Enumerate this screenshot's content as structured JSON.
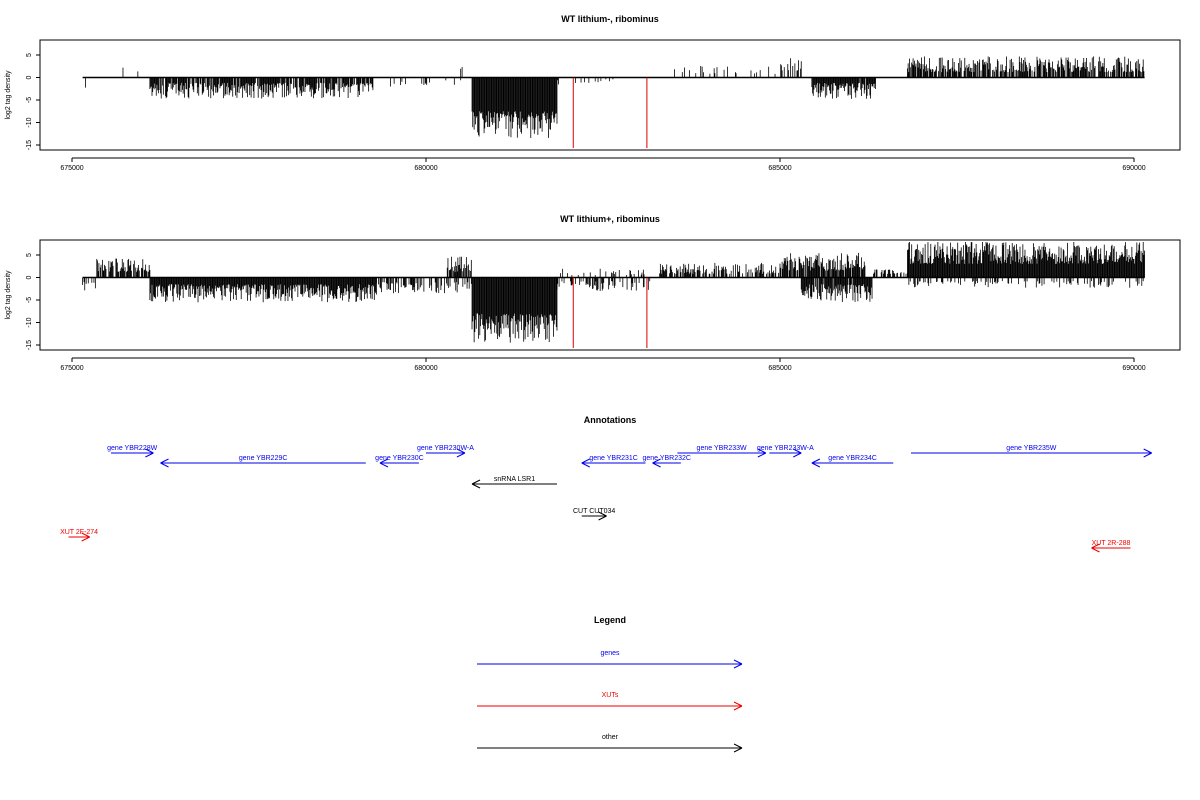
{
  "chart_data": [
    {
      "type": "bar",
      "title": "WT lithium-, ribominus",
      "xlabel": "",
      "ylabel": "log2 tag density",
      "xlim": [
        675000,
        690000
      ],
      "ylim": [
        -15,
        10
      ],
      "x_ticks": [
        {
          "value": 675000,
          "label": "675000"
        },
        {
          "value": 680000,
          "label": "680000"
        },
        {
          "value": 685000,
          "label": "685000"
        },
        {
          "value": 690000,
          "label": "690000"
        }
      ],
      "y_ticks": [
        {
          "value": 5,
          "label": "5"
        },
        {
          "value": 0,
          "label": "0"
        },
        {
          "value": -5,
          "label": "-5"
        },
        {
          "value": -10,
          "label": "-10"
        },
        {
          "value": -15,
          "label": "-15"
        }
      ],
      "grid": false,
      "x_range": [
        675150,
        690150
      ],
      "segments": [
        {
          "start": 675150,
          "end": 675450,
          "sign": -1,
          "base": 0.8,
          "amp": 1.8,
          "density": 0.05
        },
        {
          "start": 675450,
          "end": 675950,
          "sign": 1,
          "base": 1.0,
          "amp": 2.0,
          "density": 0.08
        },
        {
          "start": 676100,
          "end": 679250,
          "sign": -1,
          "base": 1.2,
          "amp": 3.5,
          "density": 0.85
        },
        {
          "start": 679500,
          "end": 680550,
          "sign": -1,
          "base": 0.6,
          "amp": 1.5,
          "density": 0.15
        },
        {
          "start": 680300,
          "end": 680600,
          "sign": 1,
          "base": 1.0,
          "amp": 2.0,
          "density": 0.12
        },
        {
          "start": 680650,
          "end": 681850,
          "sign": -1,
          "base": 7.5,
          "amp": 6.0,
          "density": 1.0
        },
        {
          "start": 681850,
          "end": 683200,
          "sign": -1,
          "base": 0.4,
          "amp": 1.2,
          "density": 0.08
        },
        {
          "start": 683500,
          "end": 685000,
          "sign": 1,
          "base": 0.8,
          "amp": 1.8,
          "density": 0.15
        },
        {
          "start": 685000,
          "end": 685300,
          "sign": 1,
          "base": 1.5,
          "amp": 3.0,
          "density": 0.4
        },
        {
          "start": 685450,
          "end": 686350,
          "sign": -1,
          "base": 1.2,
          "amp": 3.8,
          "density": 0.9
        },
        {
          "start": 686500,
          "end": 686800,
          "sign": 1,
          "base": 0.5,
          "amp": 1.0,
          "density": 0.05
        },
        {
          "start": 686800,
          "end": 690150,
          "sign": 1,
          "base": 1.2,
          "amp": 3.5,
          "density": 0.75
        }
      ],
      "red_lines": [
        {
          "x": 682080,
          "y": -16
        },
        {
          "x": 683120,
          "y": -16
        }
      ],
      "seed": 7
    },
    {
      "type": "bar",
      "title": "WT lithium+, ribominus",
      "xlabel": "",
      "ylabel": "log2 tag density",
      "xlim": [
        675000,
        690000
      ],
      "ylim": [
        -15,
        10
      ],
      "x_ticks": [
        {
          "value": 675000,
          "label": "675000"
        },
        {
          "value": 680000,
          "label": "680000"
        },
        {
          "value": 685000,
          "label": "685000"
        },
        {
          "value": 690000,
          "label": "690000"
        }
      ],
      "y_ticks": [
        {
          "value": 5,
          "label": "5"
        },
        {
          "value": 0,
          "label": "0"
        },
        {
          "value": -5,
          "label": "-5"
        },
        {
          "value": -10,
          "label": "-10"
        },
        {
          "value": -15,
          "label": "-15"
        }
      ],
      "grid": false,
      "x_range": [
        675150,
        690150
      ],
      "segments": [
        {
          "start": 675150,
          "end": 675350,
          "sign": -1,
          "base": 1.0,
          "amp": 2.0,
          "density": 0.5
        },
        {
          "start": 675350,
          "end": 676100,
          "sign": 1,
          "base": 1.2,
          "amp": 3.0,
          "density": 0.8
        },
        {
          "start": 676100,
          "end": 679300,
          "sign": -1,
          "base": 1.5,
          "amp": 4.0,
          "density": 1.0
        },
        {
          "start": 679300,
          "end": 680300,
          "sign": -1,
          "base": 1.0,
          "amp": 2.5,
          "density": 0.6
        },
        {
          "start": 680300,
          "end": 680650,
          "sign": 1,
          "base": 1.2,
          "amp": 3.5,
          "density": 0.6
        },
        {
          "start": 680300,
          "end": 680650,
          "sign": -1,
          "base": 1.0,
          "amp": 2.5,
          "density": 0.4
        },
        {
          "start": 680650,
          "end": 681850,
          "sign": -1,
          "base": 8.0,
          "amp": 6.5,
          "density": 1.0
        },
        {
          "start": 681850,
          "end": 683200,
          "sign": -1,
          "base": 0.8,
          "amp": 2.5,
          "density": 0.5
        },
        {
          "start": 681850,
          "end": 683200,
          "sign": 1,
          "base": 0.5,
          "amp": 1.5,
          "density": 0.2
        },
        {
          "start": 683300,
          "end": 685000,
          "sign": 1,
          "base": 0.8,
          "amp": 2.5,
          "density": 0.6
        },
        {
          "start": 685000,
          "end": 686200,
          "sign": 1,
          "base": 1.5,
          "amp": 4.0,
          "density": 0.9
        },
        {
          "start": 685300,
          "end": 686300,
          "sign": -1,
          "base": 1.5,
          "amp": 4.0,
          "density": 0.9
        },
        {
          "start": 686300,
          "end": 686800,
          "sign": 1,
          "base": 0.8,
          "amp": 1.5,
          "density": 0.5
        },
        {
          "start": 686800,
          "end": 690150,
          "sign": 1,
          "base": 3.0,
          "amp": 5.0,
          "density": 1.0
        },
        {
          "start": 686800,
          "end": 690150,
          "sign": -1,
          "base": 0.8,
          "amp": 1.5,
          "density": 0.3
        }
      ],
      "red_lines": [
        {
          "x": 682080,
          "y": -16
        },
        {
          "x": 683120,
          "y": -16
        }
      ],
      "seed": 13
    }
  ],
  "annotations": {
    "title": "Annotations",
    "colors": {
      "genes": "#0000ee",
      "XUTs": "#ee0000",
      "other": "#000000"
    },
    "items": [
      {
        "label": "gene YBR228W",
        "start": 675550,
        "end": 676150,
        "dir": "right",
        "cat": "genes",
        "row": 0
      },
      {
        "label": "gene YBR229C",
        "start": 676250,
        "end": 679150,
        "dir": "left",
        "cat": "genes",
        "row": 1
      },
      {
        "label": "gene YBR230C",
        "start": 679350,
        "end": 679900,
        "dir": "left",
        "cat": "genes",
        "row": 1
      },
      {
        "label": "gene YBR230W-A",
        "start": 680000,
        "end": 680550,
        "dir": "right",
        "cat": "genes",
        "row": 0
      },
      {
        "label": "snRNA LSR1",
        "start": 680650,
        "end": 681850,
        "dir": "left",
        "cat": "other",
        "row": 3
      },
      {
        "label": "gene YBR231C",
        "start": 682200,
        "end": 683100,
        "dir": "left",
        "cat": "genes",
        "row": 1
      },
      {
        "label": "gene YBR232C",
        "start": 683200,
        "end": 683600,
        "dir": "left",
        "cat": "genes",
        "row": 1
      },
      {
        "label": "gene YBR233W",
        "start": 683550,
        "end": 684800,
        "dir": "right",
        "cat": "genes",
        "row": 0
      },
      {
        "label": "gene YBR233W-A",
        "start": 684850,
        "end": 685300,
        "dir": "right",
        "cat": "genes",
        "row": 0
      },
      {
        "label": "gene YBR234C",
        "start": 685450,
        "end": 686600,
        "dir": "left",
        "cat": "genes",
        "row": 1
      },
      {
        "label": "gene YBR235W",
        "start": 686850,
        "end": 690250,
        "dir": "right",
        "cat": "genes",
        "row": 0
      },
      {
        "label": "CUT CUT034",
        "start": 682200,
        "end": 682550,
        "dir": "right",
        "cat": "other",
        "row": 5
      },
      {
        "label": "XUT 2F-274",
        "start": 674950,
        "end": 675250,
        "dir": "right",
        "cat": "XUTs",
        "row": 7
      },
      {
        "label": "XUT 2R-288",
        "start": 689400,
        "end": 689950,
        "dir": "left",
        "cat": "XUTs",
        "row": 8
      }
    ]
  },
  "legend": {
    "title": "Legend",
    "items": [
      {
        "label": "genes",
        "cat": "genes"
      },
      {
        "label": "XUTs",
        "cat": "XUTs"
      },
      {
        "label": "other",
        "cat": "other"
      }
    ]
  }
}
